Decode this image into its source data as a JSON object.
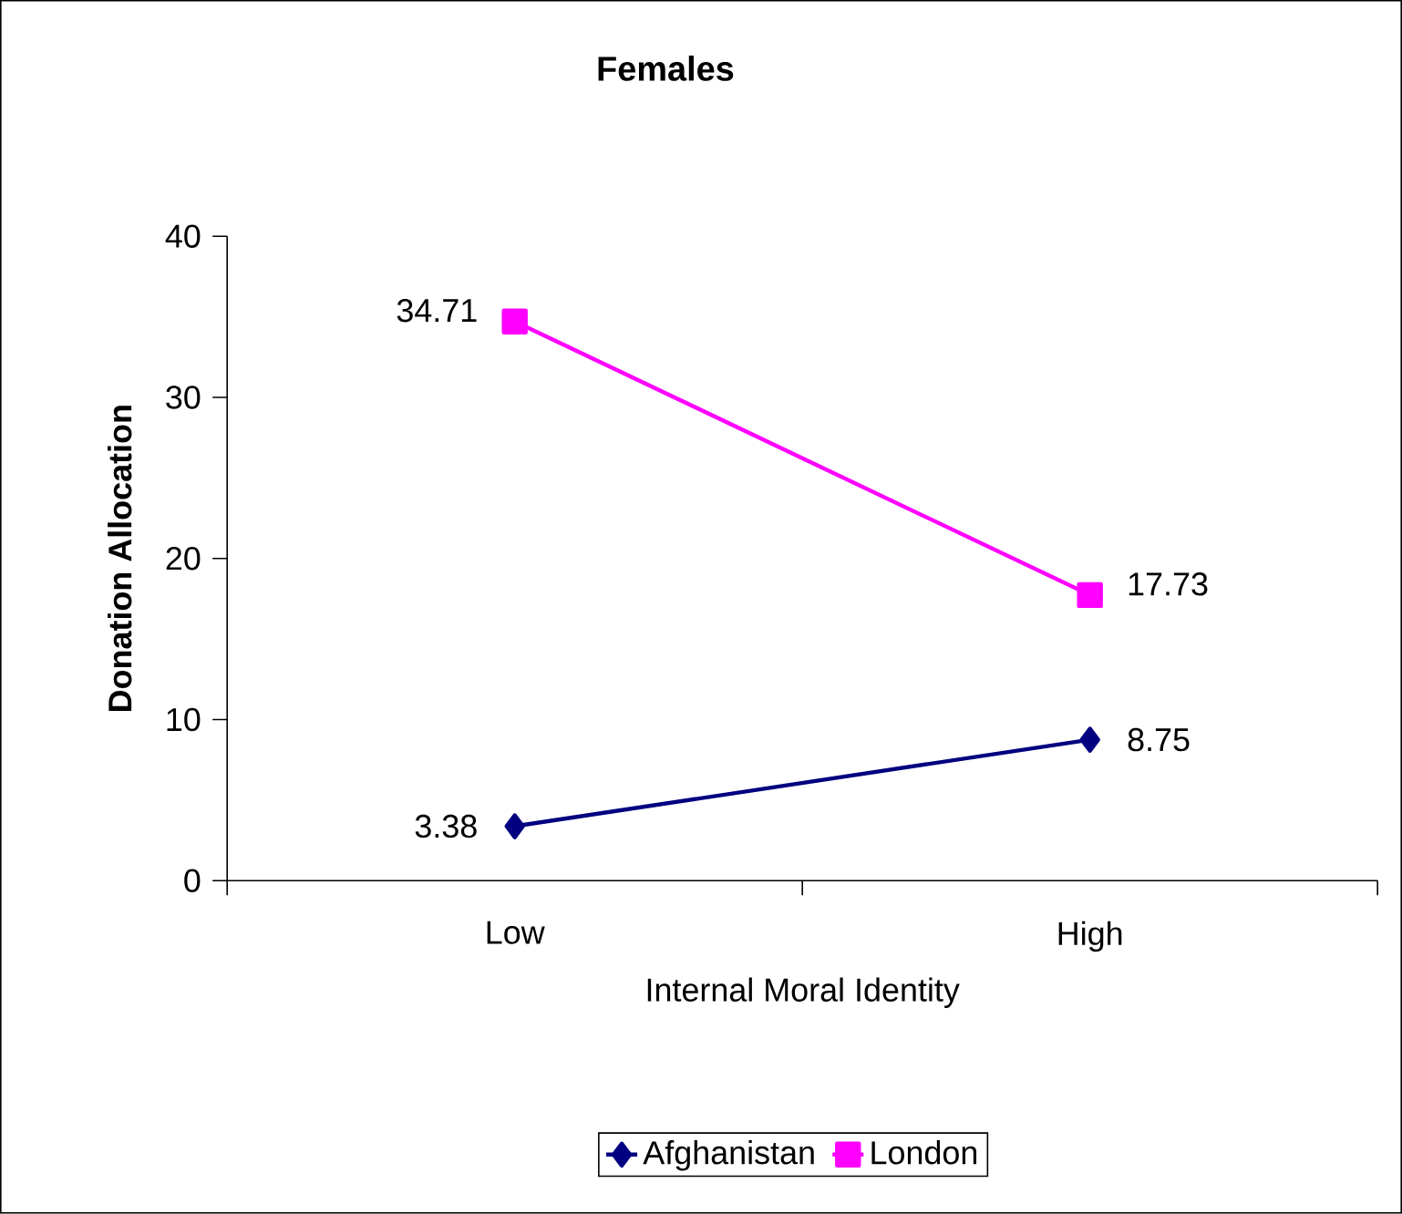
{
  "chart_data": {
    "type": "line",
    "title": "Females",
    "xlabel": "Internal Moral Identity",
    "ylabel": "Donation Allocation",
    "categories": [
      "Low",
      "High"
    ],
    "series": [
      {
        "name": "Afghanistan",
        "color": "#000080",
        "marker": "diamond",
        "values": [
          3.38,
          8.75
        ]
      },
      {
        "name": "London",
        "color": "#ff00ff",
        "marker": "square",
        "values": [
          34.71,
          17.73
        ]
      }
    ],
    "ylim": [
      0,
      40
    ],
    "yticks": [
      0,
      10,
      20,
      30,
      40
    ],
    "grid": false,
    "legend": "bottom",
    "data_labels": true,
    "line_style": "solid"
  }
}
